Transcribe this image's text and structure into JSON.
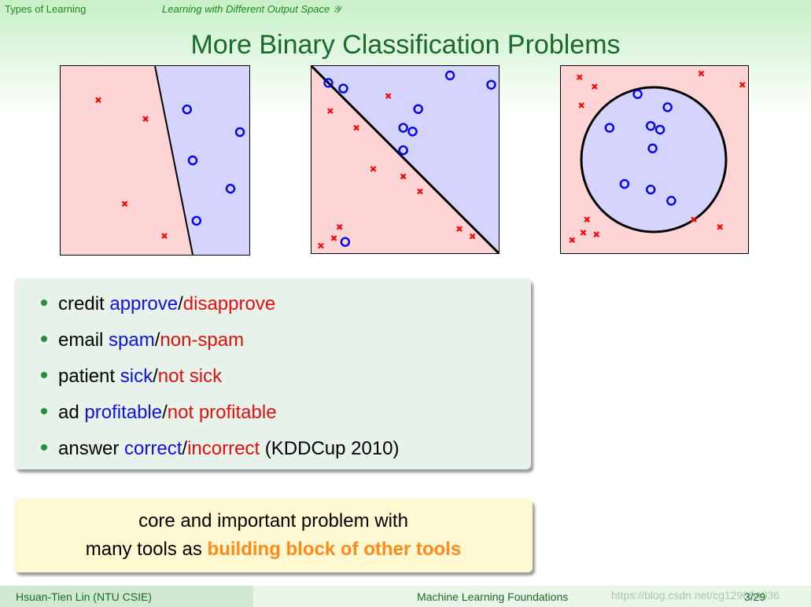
{
  "header": {
    "section": "Types of Learning",
    "subsection": "Learning with Different Output Space 𝒴",
    "title": "More Binary Classification Problems"
  },
  "figures": {
    "negative_color": "#ff0000",
    "positive_color": "#0000ee",
    "negative_region_color": "#ffd4d4",
    "positive_region_color": "#d4d4ff",
    "negative_marker": "x-mark",
    "positive_marker": "circle",
    "panels": [
      {
        "boundary": "line",
        "negatives": [
          [
            0.2,
            0.18
          ],
          [
            0.45,
            0.28
          ],
          [
            0.34,
            0.73
          ],
          [
            0.55,
            0.9
          ]
        ],
        "positives": [
          [
            0.67,
            0.23
          ],
          [
            0.95,
            0.35
          ],
          [
            0.7,
            0.5
          ],
          [
            0.9,
            0.65
          ],
          [
            0.72,
            0.82
          ]
        ]
      },
      {
        "boundary": "diagonal",
        "negatives": [
          [
            0.1,
            0.24
          ],
          [
            0.41,
            0.16
          ],
          [
            0.24,
            0.33
          ],
          [
            0.33,
            0.55
          ],
          [
            0.49,
            0.59
          ],
          [
            0.58,
            0.67
          ],
          [
            0.15,
            0.86
          ],
          [
            0.12,
            0.92
          ],
          [
            0.05,
            0.96
          ],
          [
            0.79,
            0.87
          ],
          [
            0.86,
            0.91
          ]
        ],
        "positives": [
          [
            0.09,
            0.09
          ],
          [
            0.17,
            0.12
          ],
          [
            0.74,
            0.05
          ],
          [
            0.96,
            0.1
          ],
          [
            0.57,
            0.23
          ],
          [
            0.49,
            0.33
          ],
          [
            0.54,
            0.35
          ],
          [
            0.49,
            0.45
          ],
          [
            0.18,
            0.94
          ]
        ]
      },
      {
        "boundary": "circle",
        "negatives": [
          [
            0.1,
            0.06
          ],
          [
            0.18,
            0.11
          ],
          [
            0.11,
            0.21
          ],
          [
            0.75,
            0.04
          ],
          [
            0.97,
            0.1
          ],
          [
            0.14,
            0.82
          ],
          [
            0.71,
            0.82
          ],
          [
            0.85,
            0.86
          ],
          [
            0.12,
            0.89
          ],
          [
            0.19,
            0.9
          ],
          [
            0.06,
            0.93
          ]
        ],
        "positives": [
          [
            0.41,
            0.15
          ],
          [
            0.57,
            0.22
          ],
          [
            0.26,
            0.33
          ],
          [
            0.48,
            0.32
          ],
          [
            0.53,
            0.34
          ],
          [
            0.49,
            0.44
          ],
          [
            0.34,
            0.63
          ],
          [
            0.48,
            0.66
          ],
          [
            0.59,
            0.72
          ]
        ]
      }
    ]
  },
  "bullets": [
    {
      "prefix": "credit",
      "positive": "approve",
      "separator": "/",
      "negative": "disapprove",
      "suffix": ""
    },
    {
      "prefix": "email",
      "positive": "spam",
      "separator": "/",
      "negative": "non-spam",
      "suffix": ""
    },
    {
      "prefix": "patient",
      "positive": "sick",
      "separator": "/",
      "negative": "not sick",
      "suffix": ""
    },
    {
      "prefix": "ad",
      "positive": "profitable",
      "separator": "/",
      "negative": "not profitable",
      "suffix": ""
    },
    {
      "prefix": "answer",
      "positive": "correct",
      "separator": "/",
      "negative": "incorrect",
      "suffix": "(KDDCup 2010)"
    }
  ],
  "callout": {
    "line1": "core and important problem with",
    "line2_plain": "many tools as",
    "line2_bold": "building block of other tools"
  },
  "footer": {
    "author": "Hsuan-Tien Lin (NTU CSIE)",
    "course": "Machine Learning Foundations",
    "url": "https://blog.csdn.net/cg129054036",
    "page": "3/29"
  }
}
